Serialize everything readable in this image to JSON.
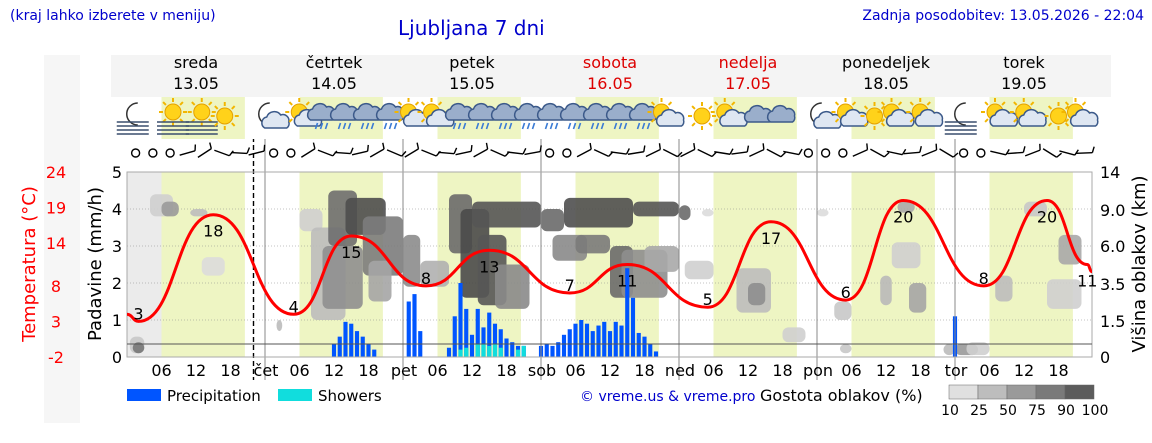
{
  "header": {
    "left_note": "(kraj lahko izberete v meniju)",
    "title": "Ljubljana 7 dni",
    "updated": "Zadnja posodobitev: 13.05.2026 - 22:04",
    "copyright": "© vreme.us & vreme.pro"
  },
  "colors": {
    "temperature": "#ff0000",
    "precipitation": "#0055ff",
    "showers": "#11dddd",
    "daylight": "#eef5c3",
    "night_band": "#ebebeb",
    "weekend_label": "#dd0000"
  },
  "icon_legend": {
    "moon": "moon-icon",
    "sun": "sun-icon",
    "fog": "fog-icon",
    "partly_cloudy": "sun-cloud-icon",
    "rain": "rain-cloud-icon",
    "calm": "calm-circle-icon",
    "wind": "wind-barb-icon"
  },
  "days": [
    {
      "name": "sreda",
      "date": "13.05",
      "abbr": "",
      "weekend": false
    },
    {
      "name": "četrtek",
      "date": "14.05",
      "abbr": "čet",
      "weekend": false
    },
    {
      "name": "petek",
      "date": "15.05",
      "abbr": "pet",
      "weekend": false
    },
    {
      "name": "sobota",
      "date": "16.05",
      "abbr": "sob",
      "weekend": true
    },
    {
      "name": "nedelja",
      "date": "17.05",
      "abbr": "ned",
      "weekend": true
    },
    {
      "name": "ponedeljek",
      "date": "18.05",
      "abbr": "pon",
      "weekend": false
    },
    {
      "name": "torek",
      "date": "19.05",
      "abbr": "tor",
      "weekend": false
    }
  ],
  "legend": {
    "precip_label": "Precipitation",
    "showers_label": "Showers",
    "cloud_title": "Gostota oblakov (%)",
    "cloud_levels": [
      "10",
      "25",
      "50",
      "75",
      "90",
      "100"
    ]
  },
  "chart_data": {
    "type": "line",
    "title": "Ljubljana 7 dni",
    "x_unit": "hours",
    "x_ticks": [
      "06",
      "12",
      "18"
    ],
    "axes": {
      "precip": {
        "label": "Padavine (mm/h)",
        "range": [
          0,
          5
        ],
        "ticks": [
          "0",
          "1",
          "2",
          "3",
          "4",
          "5"
        ]
      },
      "temperature": {
        "label": "Temperatura (°C)",
        "range": [
          -2,
          24
        ],
        "ticks": [
          "-2",
          "3",
          "8",
          "14",
          "19",
          "24"
        ]
      },
      "cloud_height": {
        "label": "Višina oblakov (km)",
        "range": [
          0,
          14
        ],
        "ticks": [
          "0",
          "1.5",
          "3.5",
          "6.0",
          "9.0",
          "14"
        ]
      }
    },
    "temperature": {
      "name": "Temperatura",
      "labels": [
        {
          "day": 0,
          "hour": 2,
          "value": "3"
        },
        {
          "day": 0,
          "hour": 15,
          "value": "18"
        },
        {
          "day": 1,
          "hour": 5,
          "value": "4"
        },
        {
          "day": 1,
          "hour": 15,
          "value": "15"
        },
        {
          "day": 2,
          "hour": 4,
          "value": "8"
        },
        {
          "day": 2,
          "hour": 15,
          "value": "13"
        },
        {
          "day": 3,
          "hour": 5,
          "value": "7"
        },
        {
          "day": 3,
          "hour": 15,
          "value": "11"
        },
        {
          "day": 4,
          "hour": 5,
          "value": "5"
        },
        {
          "day": 4,
          "hour": 16,
          "value": "17"
        },
        {
          "day": 5,
          "hour": 5,
          "value": "6"
        },
        {
          "day": 5,
          "hour": 15,
          "value": "20"
        },
        {
          "day": 6,
          "hour": 5,
          "value": "8"
        },
        {
          "day": 6,
          "hour": 16,
          "value": "20"
        },
        {
          "day": 6,
          "hour": 23,
          "value": "11"
        }
      ]
    },
    "precipitation": {
      "name": "Precipitation",
      "values": [
        {
          "day": 1,
          "hour": 12,
          "v": 0.35
        },
        {
          "day": 1,
          "hour": 13,
          "v": 0.55
        },
        {
          "day": 1,
          "hour": 14,
          "v": 0.95
        },
        {
          "day": 1,
          "hour": 15,
          "v": 0.9
        },
        {
          "day": 1,
          "hour": 16,
          "v": 0.7
        },
        {
          "day": 1,
          "hour": 17,
          "v": 0.55
        },
        {
          "day": 1,
          "hour": 18,
          "v": 0.35
        },
        {
          "day": 1,
          "hour": 19,
          "v": 0.2
        },
        {
          "day": 2,
          "hour": 1,
          "v": 1.5
        },
        {
          "day": 2,
          "hour": 2,
          "v": 1.7
        },
        {
          "day": 2,
          "hour": 3,
          "v": 0.7
        },
        {
          "day": 2,
          "hour": 8,
          "v": 0.25
        },
        {
          "day": 2,
          "hour": 9,
          "v": 1.1
        },
        {
          "day": 2,
          "hour": 10,
          "v": 2.0
        },
        {
          "day": 2,
          "hour": 11,
          "v": 1.3
        },
        {
          "day": 2,
          "hour": 12,
          "v": 0.6
        },
        {
          "day": 2,
          "hour": 13,
          "v": 1.3
        },
        {
          "day": 2,
          "hour": 14,
          "v": 0.8
        },
        {
          "day": 2,
          "hour": 15,
          "v": 1.2
        },
        {
          "day": 2,
          "hour": 16,
          "v": 0.9
        },
        {
          "day": 2,
          "hour": 17,
          "v": 0.75
        },
        {
          "day": 2,
          "hour": 18,
          "v": 0.5
        },
        {
          "day": 2,
          "hour": 19,
          "v": 0.4
        },
        {
          "day": 2,
          "hour": 20,
          "v": 0.3
        },
        {
          "day": 2,
          "hour": 21,
          "v": 0.3
        },
        {
          "day": 3,
          "hour": 0,
          "v": 0.3
        },
        {
          "day": 3,
          "hour": 1,
          "v": 0.35
        },
        {
          "day": 3,
          "hour": 2,
          "v": 0.3
        },
        {
          "day": 3,
          "hour": 3,
          "v": 0.4
        },
        {
          "day": 3,
          "hour": 4,
          "v": 0.6
        },
        {
          "day": 3,
          "hour": 5,
          "v": 0.75
        },
        {
          "day": 3,
          "hour": 6,
          "v": 0.9
        },
        {
          "day": 3,
          "hour": 7,
          "v": 1.0
        },
        {
          "day": 3,
          "hour": 8,
          "v": 0.9
        },
        {
          "day": 3,
          "hour": 9,
          "v": 0.7
        },
        {
          "day": 3,
          "hour": 10,
          "v": 0.85
        },
        {
          "day": 3,
          "hour": 11,
          "v": 0.95
        },
        {
          "day": 3,
          "hour": 12,
          "v": 0.7
        },
        {
          "day": 3,
          "hour": 13,
          "v": 0.95
        },
        {
          "day": 3,
          "hour": 14,
          "v": 0.85
        },
        {
          "day": 3,
          "hour": 15,
          "v": 2.4
        },
        {
          "day": 3,
          "hour": 16,
          "v": 1.6
        },
        {
          "day": 3,
          "hour": 17,
          "v": 0.65
        },
        {
          "day": 3,
          "hour": 18,
          "v": 0.55
        },
        {
          "day": 3,
          "hour": 19,
          "v": 0.35
        },
        {
          "day": 3,
          "hour": 20,
          "v": 0.15
        },
        {
          "day": 6,
          "hour": 0,
          "v": 1.1
        }
      ]
    },
    "showers": {
      "name": "Showers",
      "values": [
        {
          "day": 2,
          "hour": 10,
          "v": 0.2
        },
        {
          "day": 2,
          "hour": 11,
          "v": 0.25
        },
        {
          "day": 2,
          "hour": 13,
          "v": 0.35
        },
        {
          "day": 2,
          "hour": 14,
          "v": 0.35
        },
        {
          "day": 2,
          "hour": 15,
          "v": 0.3
        },
        {
          "day": 2,
          "hour": 16,
          "v": 0.35
        },
        {
          "day": 2,
          "hour": 17,
          "v": 0.25
        },
        {
          "day": 2,
          "hour": 20,
          "v": 0.2
        },
        {
          "day": 2,
          "hour": 21,
          "v": 0.3
        }
      ]
    }
  }
}
